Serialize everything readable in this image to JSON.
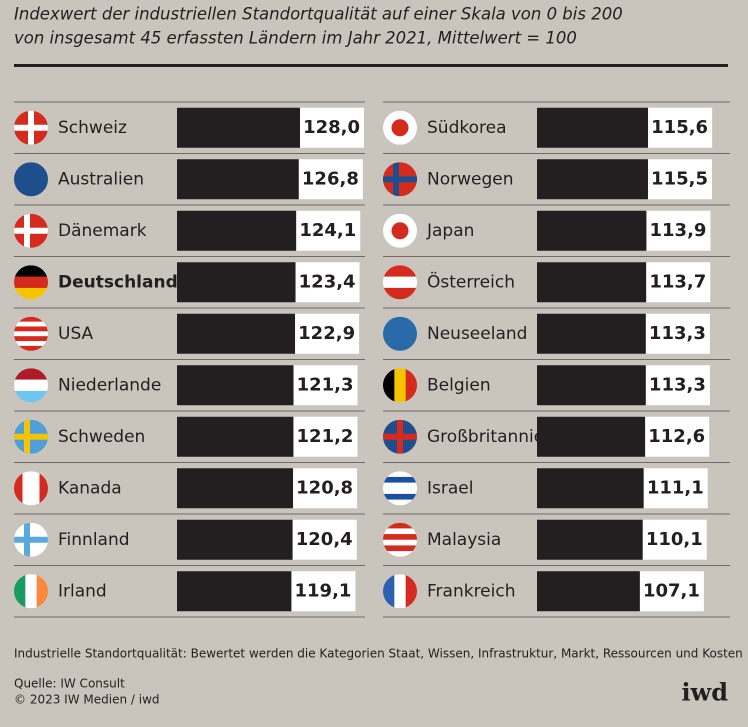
{
  "chart_data": {
    "type": "bar",
    "title": "Indexwert der industriellen Standortqualität auf einer Skala von 0 bis 200",
    "subtitle": "von insgesamt 45 erfassten Ländern im Jahr 2021, Mittelwert = 100",
    "categories": [
      "Schweiz",
      "Australien",
      "Dänemark",
      "Deutschland",
      "USA",
      "Niederlande",
      "Schweden",
      "Kanada",
      "Finnland",
      "Irland",
      "Südkorea",
      "Norwegen",
      "Japan",
      "Österreich",
      "Neuseeland",
      "Belgien",
      "Großbritannien",
      "Israel",
      "Malaysia",
      "Frankreich"
    ],
    "values": [
      128.0,
      126.8,
      124.1,
      123.4,
      122.9,
      121.3,
      121.2,
      120.8,
      120.4,
      119.1,
      115.6,
      115.5,
      113.9,
      113.7,
      113.3,
      113.3,
      112.6,
      111.1,
      110.1,
      107.1
    ],
    "value_labels": [
      "128,0",
      "126,8",
      "124,1",
      "123,4",
      "122,9",
      "121,3",
      "121,2",
      "120,8",
      "120,4",
      "119,1",
      "115,6",
      "115,5",
      "113,9",
      "113,7",
      "113,3",
      "113,3",
      "112,6",
      "111,1",
      "110,1",
      "107,1"
    ],
    "color": "#231f20",
    "note": "Industrielle Standortqualität: Bewertet werden die Kategorien Staat, Wissen, Infrastruktur, Markt, Ressourcen und Kosten",
    "source": "Quelle: IW Consult",
    "copyright": "© 2023 IW Medien / iwd",
    "logo": "iwd"
  }
}
